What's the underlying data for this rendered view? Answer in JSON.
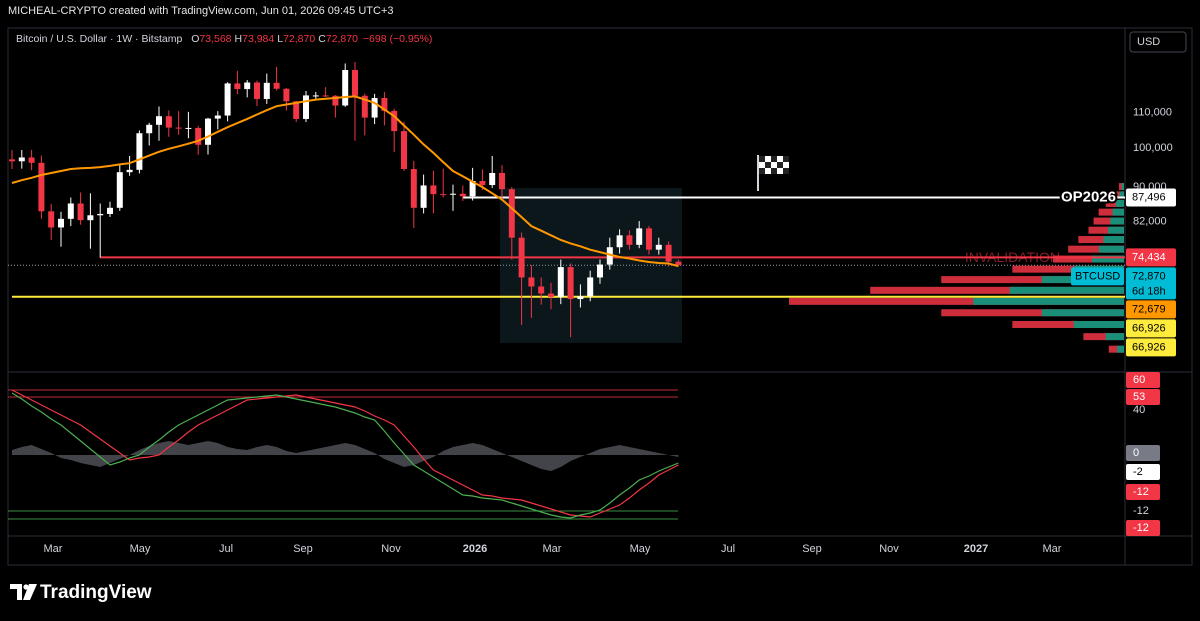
{
  "header": {
    "credit": "MICHEAL-CRYPTO created with TradingView.com, Jun 01, 2026 09:45 UTC+3",
    "currency": "USD"
  },
  "footer": {
    "brand": "TradingView"
  },
  "chart_data": {
    "type": "candlestick",
    "symbol": "Bitcoin / U.S. Dollar · 1W · Bitstamp",
    "ohlc": [
      {
        "key": "O",
        "value": 73568,
        "label": "73,568"
      },
      {
        "key": "H",
        "value": 73984,
        "label": "73,984"
      },
      {
        "key": "L",
        "value": 72870,
        "label": "72,870"
      },
      {
        "key": "C",
        "value": 72870,
        "label": "72,870"
      }
    ],
    "change": "−698 (−0.95%)",
    "log": true,
    "grid": false,
    "ylim": [
      54900,
      137600
    ],
    "yticks": [
      {
        "value": 110000,
        "label": "110,000"
      },
      {
        "value": 100000,
        "label": "100,000"
      },
      {
        "value": 90000,
        "label": "90,000"
      },
      {
        "value": 82000,
        "label": "82,000"
      }
    ],
    "xtick_labels": [
      "Mar",
      "May",
      "Jul",
      "Sep",
      "Nov",
      "2026",
      "Mar",
      "May",
      "Jul",
      "Sep",
      "Nov",
      "2027",
      "Mar"
    ],
    "up_color": "#ffffff",
    "down_color": "#f23645",
    "open": [
      97000,
      96500,
      97500,
      96100,
      84300,
      80700,
      82600,
      86100,
      82300,
      83400,
      83700,
      85100,
      93700,
      94300,
      104100,
      106500,
      109000,
      105700,
      105600,
      105600,
      100900,
      108300,
      109200,
      119100,
      117300,
      119400,
      114200,
      119300,
      117400,
      113500,
      108200,
      115300,
      115300,
      115200,
      112200,
      123500,
      115200,
      108600,
      114500,
      110600,
      104700,
      94500,
      85100,
      90400,
      88300,
      88200,
      88400,
      87800,
      91500,
      90500,
      93500,
      89500,
      78500,
      70500,
      68800,
      67500,
      66900,
      72500,
      66500,
      67000,
      70500,
      73000,
      76500,
      79000,
      77000,
      80500,
      76000,
      77000,
      73568
    ],
    "high": [
      99500,
      99500,
      99500,
      98000,
      86000,
      84200,
      87500,
      88700,
      88500,
      86100,
      86500,
      95800,
      97900,
      104900,
      107100,
      111900,
      110700,
      110500,
      110300,
      106200,
      108500,
      110500,
      119500,
      123200,
      120200,
      120000,
      122300,
      124500,
      117600,
      113600,
      116700,
      116400,
      117900,
      115400,
      125700,
      126200,
      115900,
      115800,
      116400,
      111200,
      107400,
      96600,
      93100,
      94100,
      94600,
      90600,
      90400,
      94800,
      94400,
      97900,
      95500,
      90000,
      79600,
      72900,
      70500,
      69500,
      74000,
      73200,
      69200,
      71800,
      74000,
      78500,
      80300,
      80100,
      82100,
      81000,
      78500,
      77700,
      73984
    ],
    "low": [
      94500,
      94600,
      94200,
      82600,
      78000,
      76600,
      81000,
      81300,
      76200,
      74400,
      83000,
      84400,
      92800,
      93400,
      100700,
      102000,
      103100,
      103700,
      102700,
      98200,
      98300,
      105200,
      107500,
      115700,
      114700,
      112000,
      112700,
      116800,
      110700,
      107300,
      107300,
      114200,
      114800,
      108600,
      111800,
      102000,
      103500,
      106700,
      106300,
      98900,
      94000,
      80600,
      83800,
      83800,
      87500,
      84400,
      86700,
      86800,
      89300,
      89800,
      87300,
      74000,
      62000,
      63200,
      65500,
      64700,
      65600,
      60000,
      65000,
      66100,
      69300,
      72000,
      75200,
      76000,
      76300,
      75000,
      75000,
      72600,
      72870
    ],
    "close": [
      96500,
      97500,
      96100,
      84300,
      80700,
      82600,
      86100,
      82300,
      83400,
      83700,
      85100,
      93700,
      94300,
      104100,
      106500,
      109000,
      105700,
      105600,
      105600,
      100900,
      108300,
      109200,
      119100,
      117300,
      119400,
      114200,
      119300,
      117400,
      113500,
      108200,
      115300,
      115300,
      115200,
      112200,
      123500,
      115200,
      108600,
      114500,
      110600,
      104700,
      94500,
      85100,
      90400,
      88300,
      88200,
      88400,
      87800,
      91500,
      90500,
      93500,
      89500,
      78500,
      70500,
      68800,
      67500,
      66900,
      72500,
      66500,
      67000,
      70500,
      73000,
      76500,
      79000,
      77000,
      80500,
      76000,
      77000,
      73568,
      72870
    ],
    "ma": {
      "color": "#ff9800",
      "values": [
        91000,
        91700,
        92300,
        93000,
        93500,
        94000,
        94500,
        94700,
        94800,
        95000,
        95300,
        95700,
        96000,
        97000,
        98000,
        99000,
        99800,
        100500,
        101200,
        102000,
        103200,
        104500,
        105800,
        107000,
        108200,
        109500,
        110800,
        112000,
        112500,
        113000,
        113500,
        114000,
        114300,
        114500,
        114800,
        115000,
        114000,
        113000,
        111000,
        109000,
        106300,
        103700,
        101000,
        98700,
        96300,
        94000,
        92700,
        91300,
        90000,
        88500,
        87000,
        85000,
        83000,
        81000,
        80000,
        79000,
        78000,
        77300,
        76700,
        76000,
        75500,
        75000,
        74500,
        74200,
        73800,
        73500,
        73300,
        73200,
        72679
      ]
    },
    "levels": [
      {
        "name": "OP2026",
        "value": 87496,
        "color": "#ffffff"
      },
      {
        "name": "INVALIDATION",
        "value": 74434,
        "color": "#f23645"
      },
      {
        "value": 66926,
        "color": "#ffeb3b"
      }
    ],
    "last_price": {
      "value": 72870,
      "color": "#9598a1"
    },
    "price_labels": [
      {
        "value": 87496,
        "label": "87,496",
        "color": "#ffffff",
        "text_color": "#000000"
      },
      {
        "value": 74434,
        "label": "74,434",
        "color": "#f23645",
        "text_color": "#ffffff"
      },
      {
        "value": 72870,
        "label": "72,870",
        "color": "#00bcd4",
        "text_color": "#000000",
        "tag": "BTCUSD",
        "sub": "6d 18h"
      },
      {
        "value": 72679,
        "label": "72,679",
        "color": "#ff9800",
        "text_color": "#000000"
      },
      {
        "value": 66926,
        "label": "66,926",
        "color": "#ffeb3b",
        "text_color": "#000000"
      },
      {
        "value": 66926,
        "label": "66,926",
        "color": "#ffeb3b",
        "text_color": "#000000"
      }
    ],
    "volume_profile": {
      "prices": [
        90000,
        88000,
        86000,
        84000,
        82000,
        80000,
        78000,
        76000,
        74000,
        72000,
        70000,
        68000,
        66000,
        64000,
        62000,
        60000,
        58000
      ],
      "values": [
        5,
        10,
        18,
        25,
        30,
        35,
        45,
        55,
        70,
        110,
        180,
        250,
        330,
        180,
        110,
        40,
        15
      ],
      "up_color": "#089981",
      "down_color": "#f23645"
    },
    "indicator": {
      "ylim": [
        -80,
        80
      ],
      "fast": {
        "color": "#4caf50",
        "values": [
          62,
          56,
          49,
          43,
          36,
          30,
          22,
          14,
          6,
          -2,
          -10,
          -7,
          -3,
          0,
          8,
          15,
          23,
          30,
          35,
          40,
          45,
          50,
          55,
          56,
          57,
          58,
          59,
          60,
          58,
          56,
          54,
          52,
          50,
          48,
          45,
          42,
          38,
          35,
          24,
          12,
          1,
          -10,
          -16,
          -22,
          -28,
          -34,
          -40,
          -41,
          -43,
          -44,
          -45,
          -48,
          -51,
          -54,
          -57,
          -60,
          -62,
          -63,
          -60,
          -58,
          -55,
          -48,
          -40,
          -33,
          -25,
          -21,
          -16,
          -12,
          -8
        ]
      },
      "slow": {
        "color": "#f23645",
        "values": [
          65,
          60,
          55,
          50,
          45,
          40,
          35,
          30,
          23,
          16,
          9,
          2,
          -5,
          -3,
          -2,
          0,
          8,
          15,
          23,
          30,
          35,
          40,
          45,
          50,
          55,
          56,
          57,
          58,
          59,
          60,
          58,
          56,
          54,
          52,
          50,
          48,
          44,
          39,
          35,
          30,
          19,
          8,
          -4,
          -15,
          -20,
          -25,
          -30,
          -35,
          -40,
          -41,
          -43,
          -44,
          -45,
          -48,
          -51,
          -54,
          -57,
          -60,
          -61,
          -62,
          -58,
          -54,
          -50,
          -43,
          -35,
          -28,
          -20,
          -15,
          -10
        ]
      },
      "histogram": {
        "color": "#787b86",
        "values": [
          5,
          8,
          10,
          6,
          2,
          -3,
          -5,
          -8,
          -10,
          -12,
          -8,
          -4,
          0,
          5,
          9,
          12,
          14,
          12,
          10,
          12,
          14,
          12,
          8,
          6,
          5,
          8,
          10,
          8,
          4,
          2,
          4,
          6,
          8,
          10,
          12,
          10,
          6,
          2,
          -4,
          -8,
          -12,
          -10,
          -6,
          -2,
          4,
          8,
          10,
          12,
          10,
          6,
          2,
          -2,
          -6,
          -10,
          -14,
          -16,
          -12,
          -6,
          -2,
          2,
          6,
          8,
          10,
          8,
          6,
          4,
          2,
          0,
          -2
        ]
      },
      "bands": [
        {
          "value": 65,
          "color": "#f23645"
        },
        {
          "value": 58,
          "color": "#f23645"
        },
        {
          "value": -56,
          "color": "#4caf50"
        },
        {
          "value": -64,
          "color": "#4caf50"
        }
      ],
      "axis_labels": [
        60,
        53,
        40,
        0,
        -2,
        -12,
        -12,
        -12
      ],
      "axis_label_colors": [
        "#f23645",
        "#f23645",
        "transparent",
        "#787b86",
        "#ffffff",
        "#f23645",
        "transparent",
        "#f23645"
      ],
      "axis_label_text_colors": [
        "#ffffff",
        "#ffffff",
        "#d1d4dc",
        "#ffffff",
        "#000000",
        "#ffffff",
        "#d1d4dc",
        "#ffffff"
      ]
    }
  }
}
